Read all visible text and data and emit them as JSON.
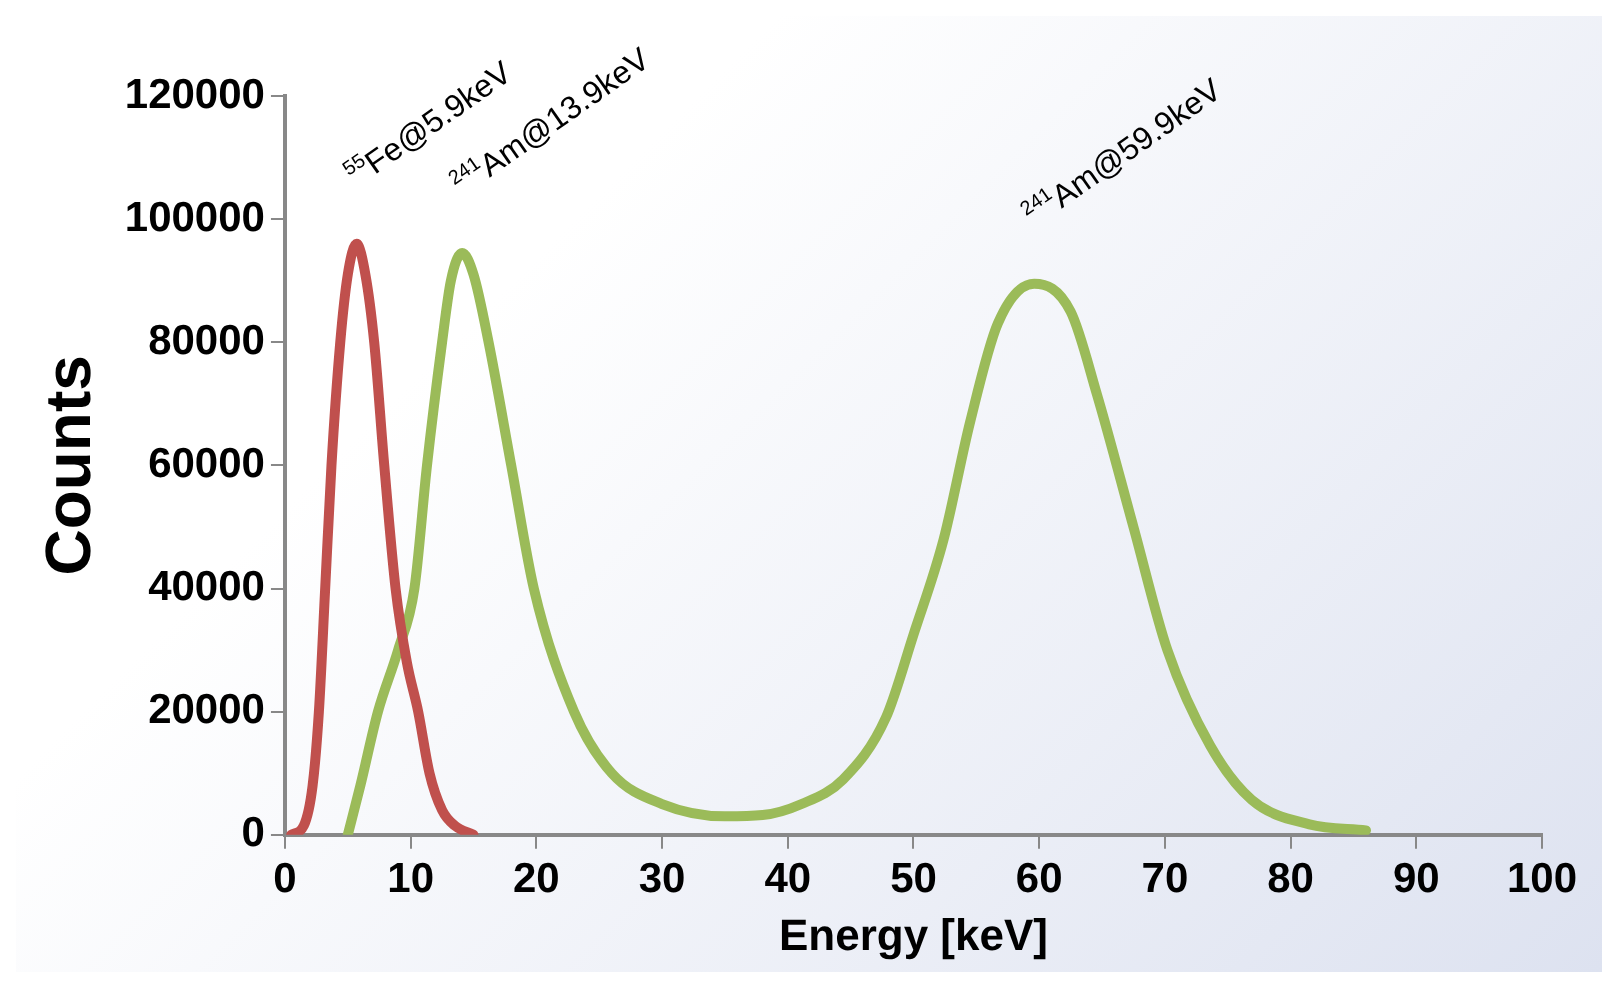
{
  "chart_data": {
    "type": "line",
    "xlabel": "Energy [keV]",
    "ylabel": "Counts",
    "xlim": [
      0,
      100
    ],
    "xticks": [
      0,
      10,
      20,
      30,
      40,
      50,
      60,
      70,
      80,
      90,
      100
    ],
    "ylim": [
      0,
      120000
    ],
    "yticks": [
      0,
      20000,
      40000,
      60000,
      80000,
      100000,
      120000
    ],
    "grid": false,
    "legend": false,
    "marker": "none",
    "line_style": "solid",
    "series": [
      {
        "color": "#c0504d",
        "x": [
          0.5,
          1.5,
          2.2,
          2.7,
          3.2,
          3.7,
          4.4,
          5,
          5.7,
          6.4,
          7.1,
          7.9,
          8.8,
          9.7,
          10.6,
          11.5,
          12.5,
          13.5,
          15
        ],
        "values": [
          0,
          1500,
          8000,
          20000,
          40000,
          60000,
          80000,
          91000,
          96000,
          91000,
          80000,
          60000,
          40000,
          28000,
          20000,
          10000,
          4000,
          1500,
          0
        ]
      },
      {
        "color": "#9bbb59",
        "x": [
          5,
          6,
          7.4,
          9,
          10.3,
          11.3,
          12.5,
          13.2,
          14.1,
          15,
          16.2,
          18,
          19.8,
          23,
          26,
          30,
          35,
          38,
          41.1,
          44.4,
          47.8,
          50,
          52.4,
          54.5,
          56.7,
          59.6,
          62.5,
          64.6,
          67.5,
          70.2,
          73.6,
          76.9,
          81.5,
          86
        ],
        "values": [
          0,
          8000,
          20000,
          30000,
          40000,
          60000,
          80000,
          90000,
          94500,
          91000,
          80000,
          60000,
          40000,
          20000,
          10000,
          5000,
          3000,
          3200,
          5000,
          9000,
          19000,
          32500,
          48000,
          67000,
          83000,
          89500,
          85000,
          71500,
          50000,
          30000,
          14500,
          5700,
          1700,
          700
        ]
      }
    ],
    "annotations": [
      {
        "text": "$^{55}$Fe@5.9keV",
        "x": 5.7,
        "y": 96000
      },
      {
        "text": "$^{241}$Am@13.9keV",
        "x": 14.1,
        "y": 94500
      },
      {
        "text": "$^{241}$Am@59.9keV",
        "x": 59.6,
        "y": 89500
      }
    ]
  }
}
